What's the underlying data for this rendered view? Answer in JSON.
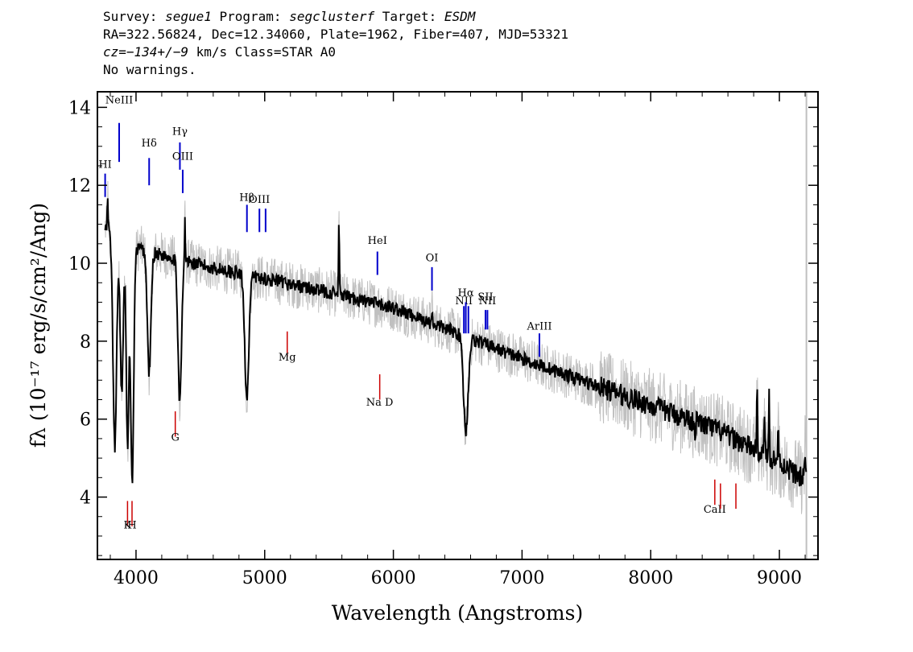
{
  "header": {
    "line1": {
      "survey_label": "Survey: ",
      "survey": "segue1",
      "program_label": " Program: ",
      "program": "segclusterf",
      "target_label": " Target: ",
      "target": "ESDM"
    },
    "line2": "RA=322.56824, Dec=12.34060, Plate=1962, Fiber=407, MJD=53321",
    "line3": {
      "cz": "cz=−134+/−9",
      "rest": " km/s Class=STAR A0"
    },
    "line4": "No warnings."
  },
  "chart_data": {
    "type": "line",
    "xlabel": "Wavelength (Angstroms)",
    "ylabel": "fλ (10⁻¹⁷ erg/s/cm²/Ang)",
    "xlim": [
      3700,
      9300
    ],
    "ylim": [
      2.4,
      14.4
    ],
    "x_ticks": [
      4000,
      5000,
      6000,
      7000,
      8000,
      9000
    ],
    "y_ticks": [
      4,
      6,
      8,
      10,
      12,
      14
    ],
    "colors": {
      "spectrum": "#000000",
      "raw": "#c0c0c0",
      "emission": "#0000cc",
      "absorption": "#cc0000"
    },
    "continuum": [
      [
        3760,
        10.9
      ],
      [
        4000,
        10.4
      ],
      [
        4500,
        9.95
      ],
      [
        5000,
        9.6
      ],
      [
        5500,
        9.25
      ],
      [
        6000,
        8.85
      ],
      [
        6500,
        8.2
      ],
      [
        7000,
        7.55
      ],
      [
        7500,
        6.95
      ],
      [
        8000,
        6.35
      ],
      [
        8500,
        5.75
      ],
      [
        9000,
        4.9
      ],
      [
        9210,
        4.4
      ]
    ],
    "absorption_features": [
      [
        3835,
        5.3,
        14
      ],
      [
        3889,
        6.7,
        12
      ],
      [
        3934,
        5.4,
        10
      ],
      [
        3970,
        4.4,
        12
      ],
      [
        4102,
        7.2,
        14
      ],
      [
        4340,
        6.5,
        14
      ],
      [
        4861,
        6.6,
        16
      ],
      [
        6563,
        5.7,
        18
      ]
    ],
    "spikes": [
      [
        3780,
        11.7
      ],
      [
        4380,
        11.2
      ],
      [
        5577,
        11.2
      ],
      [
        6300,
        8.8
      ],
      [
        8345,
        5.6
      ],
      [
        8827,
        6.8
      ],
      [
        8885,
        6.2
      ],
      [
        8920,
        6.6
      ],
      [
        8990,
        5.9
      ],
      [
        9200,
        5.3
      ]
    ],
    "emission_lines": [
      {
        "label": "NeIII",
        "wavelength": 3869,
        "y0": 12.6,
        "y1": 13.6,
        "label_y": 14.1
      },
      {
        "label": "Hδ",
        "wavelength": 4102,
        "y0": 12.0,
        "y1": 12.7,
        "label_y": 13.0
      },
      {
        "label": "Hγ",
        "wavelength": 4341,
        "y0": 12.4,
        "y1": 13.1,
        "label_y": 13.3
      },
      {
        "label": "OIII",
        "wavelength": 4363,
        "y0": 11.8,
        "y1": 12.4,
        "label_y": 12.65
      },
      {
        "label": "Hβ",
        "wavelength": 4862,
        "y0": 10.8,
        "y1": 11.5,
        "label_y": 11.6
      },
      {
        "label": "OIII",
        "wavelength": 4959,
        "y0": 10.8,
        "y1": 11.4,
        "label_y": 11.55
      },
      {
        "label": "",
        "wavelength": 5007,
        "y0": 10.8,
        "y1": 11.4,
        "label_y": 11.55
      },
      {
        "label": "HeI",
        "wavelength": 5876,
        "y0": 9.7,
        "y1": 10.3,
        "label_y": 10.5
      },
      {
        "label": "OI",
        "wavelength": 6300,
        "y0": 9.3,
        "y1": 9.9,
        "label_y": 10.05
      },
      {
        "label": "NII",
        "wavelength": 6548,
        "y0": 8.2,
        "y1": 8.9,
        "label_y": 8.95
      },
      {
        "label": "Hα",
        "wavelength": 6563,
        "y0": 8.2,
        "y1": 9.0,
        "label_y": 9.15
      },
      {
        "label": "",
        "wavelength": 6583,
        "y0": 8.2,
        "y1": 8.9,
        "label_y": 8.95
      },
      {
        "label": "SII",
        "wavelength": 6716,
        "y0": 8.3,
        "y1": 8.8,
        "label_y": 9.05
      },
      {
        "label": "NII",
        "wavelength": 6731,
        "y0": 8.3,
        "y1": 8.8,
        "label_y": 8.95
      },
      {
        "label": "ArIII",
        "wavelength": 7135,
        "y0": 7.6,
        "y1": 8.2,
        "label_y": 8.3
      },
      {
        "label": "HI",
        "wavelength": 3760,
        "y0": 11.7,
        "y1": 12.3,
        "label_y": 12.45
      }
    ],
    "absorption_lines": [
      {
        "label": "K",
        "wavelength": 3934,
        "y0": 3.95,
        "y1": 4.05,
        "label_y": 3.2
      },
      {
        "label": "H",
        "wavelength": 3969,
        "y0": 3.95,
        "y1": 4.05,
        "label_y": 3.2
      },
      {
        "label": "G",
        "wavelength": 4305,
        "y0": 6.25,
        "y1": 6.25,
        "label_y": 5.45
      },
      {
        "label": "Mg",
        "wavelength": 5175,
        "y0": 8.3,
        "y1": 8.3,
        "label_y": 7.5
      },
      {
        "label": "Na D",
        "wavelength": 5894,
        "y0": 7.2,
        "y1": 7.2,
        "label_y": 6.35
      },
      {
        "label": "CaII",
        "wavelength": 8498,
        "y0": 4.5,
        "y1": 4.5,
        "label_y": 3.6
      },
      {
        "label": "",
        "wavelength": 8542,
        "y0": 4.4,
        "y1": 4.4,
        "label_y": 3.6
      },
      {
        "label": "",
        "wavelength": 8662,
        "y0": 4.4,
        "y1": 4.4,
        "label_y": 3.6
      }
    ]
  }
}
